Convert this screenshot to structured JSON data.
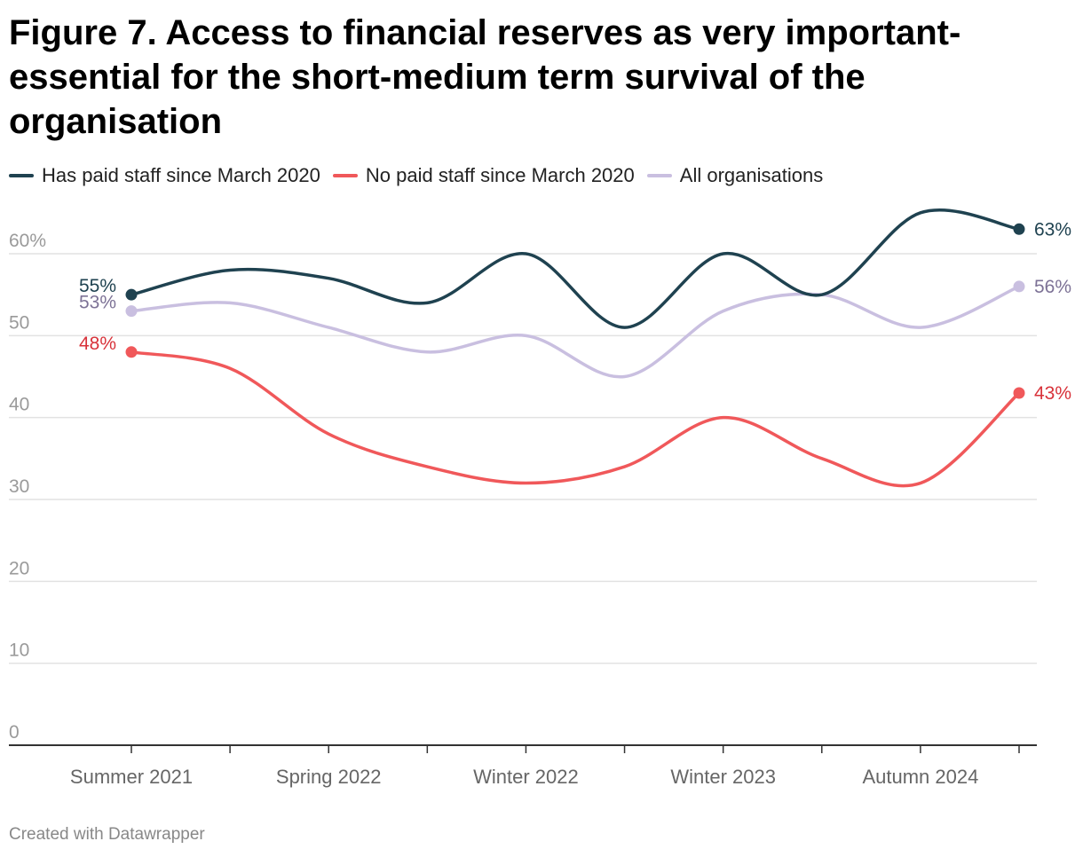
{
  "title": "Figure 7. Access to financial reserves as very important-essential for the short-medium term survival of the organisation",
  "footer": "Created with Datawrapper",
  "chart_data": {
    "type": "line",
    "title": "Figure 7. Access to financial reserves as very important-essential for the short-medium term survival of the organisation",
    "xlabel": "",
    "ylabel": "",
    "x_ticks": [
      "Summer 2021",
      "Spring 2022",
      "Winter 2022",
      "Winter 2023",
      "Autumn 2024"
    ],
    "y_ticks": [
      "0",
      "10",
      "20",
      "30",
      "40",
      "50",
      "60%"
    ],
    "ylim": [
      0,
      60
    ],
    "grid": true,
    "legend_position": "top",
    "series": [
      {
        "name": "Has paid staff since March 2020",
        "color": "#1f4250",
        "values": [
          55,
          58,
          57,
          54,
          60,
          51,
          60,
          55,
          65,
          63
        ],
        "start_label": "55%",
        "end_label": "63%"
      },
      {
        "name": "No paid staff since March 2020",
        "color": "#f0585a",
        "values": [
          48,
          46,
          38,
          34,
          32,
          34,
          40,
          35,
          32,
          43
        ],
        "start_label": "48%",
        "end_label": "43%"
      },
      {
        "name": "All organisations",
        "color": "#c9bfe0",
        "values": [
          53,
          54,
          51,
          48,
          50,
          45,
          53,
          55,
          51,
          56
        ],
        "start_label": "53%",
        "end_label": "56%"
      }
    ]
  }
}
